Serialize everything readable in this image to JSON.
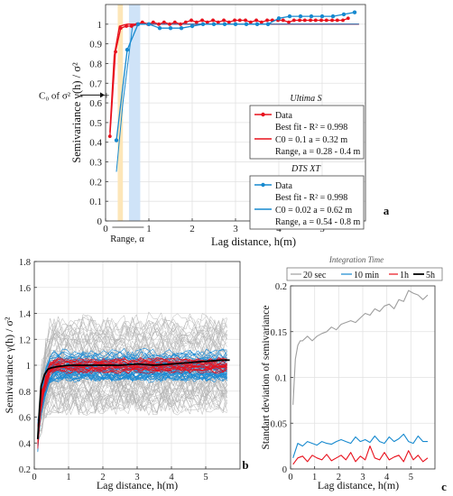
{
  "chart_data": [
    {
      "panel": "a",
      "type": "line",
      "xlabel": "Lag distance, h(m)",
      "ylabel": "Semivariance γ(h) / σ²",
      "xlim": [
        0,
        6
      ],
      "ylim": [
        0,
        1.1
      ],
      "xticks": [
        0,
        1,
        2,
        3,
        4,
        5
      ],
      "yticks": [
        0,
        0.1,
        0.2,
        0.3,
        0.4,
        0.5,
        0.6,
        0.7,
        0.8,
        0.9,
        1
      ],
      "grid": true,
      "range_bands": [
        {
          "from": 0.28,
          "to": 0.4,
          "color": "#fde6b8"
        },
        {
          "from": 0.54,
          "to": 0.8,
          "color": "#cfe3f8"
        }
      ],
      "range_label": "Range, α",
      "c0_label": "C₀ of σ²",
      "panel_label": "a",
      "legends": [
        {
          "title": "Ultima S",
          "data_label": "Data",
          "fit_label": "Best fit - R² = 0.998",
          "model_label": "C0 = 0.1 a = 0.32 m",
          "range_label": "Range, a = 0.28 - 0.4 m",
          "color": "#e8101c"
        },
        {
          "title": "DTS XT",
          "data_label": "Data",
          "fit_label": "Best fit - R² = 0.998",
          "model_label": "C0 = 0.02 a = 0.62 m",
          "range_label": "Range, a = 0.54 - 0.8 m",
          "color": "#1689cf"
        }
      ],
      "series": [
        {
          "name": "Ultima S",
          "color": "#e8101c",
          "x": [
            0.1,
            0.23,
            0.35,
            0.48,
            0.6,
            0.73,
            0.85,
            0.98,
            1.1,
            1.23,
            1.35,
            1.48,
            1.6,
            1.73,
            1.85,
            1.98,
            2.1,
            2.23,
            2.35,
            2.48,
            2.6,
            2.73,
            2.85,
            2.98,
            3.1,
            3.23,
            3.35,
            3.48,
            3.6,
            3.73,
            3.85,
            3.98,
            4.1,
            4.23,
            4.35,
            4.48,
            4.6,
            4.73,
            4.85,
            4.98,
            5.1,
            5.23,
            5.35,
            5.48,
            5.6
          ],
          "y": [
            0.43,
            0.86,
            0.98,
            0.99,
            0.99,
            1.0,
            1.01,
            1.0,
            1.01,
            1.0,
            1.01,
            1.0,
            1.01,
            1.0,
            1.01,
            1.02,
            1.01,
            1.02,
            1.01,
            1.02,
            1.01,
            1.02,
            1.01,
            1.02,
            1.02,
            1.02,
            1.01,
            1.02,
            1.01,
            1.02,
            1.02,
            1.02,
            1.02,
            1.01,
            1.02,
            1.02,
            1.02,
            1.02,
            1.02,
            1.02,
            1.02,
            1.02,
            1.02,
            1.02,
            1.03
          ]
        },
        {
          "name": "DTS XT",
          "color": "#1689cf",
          "x": [
            0.25,
            0.5,
            0.75,
            1.0,
            1.25,
            1.5,
            1.75,
            2.0,
            2.25,
            2.5,
            2.75,
            3.0,
            3.25,
            3.5,
            3.75,
            4.0,
            4.25,
            4.5,
            4.75,
            5.0,
            5.25,
            5.5,
            5.75
          ],
          "y": [
            0.41,
            0.87,
            1.0,
            1.0,
            0.98,
            0.98,
            0.98,
            0.99,
            1.0,
            1.0,
            1.0,
            1.0,
            1.0,
            1.0,
            1.0,
            1.03,
            1.04,
            1.04,
            1.04,
            1.04,
            1.04,
            1.05,
            1.06
          ]
        }
      ],
      "fit_sill": 1.0
    },
    {
      "panel": "b",
      "type": "line",
      "xlabel": "Lag distance, h(m)",
      "ylabel": "Semivariance γ(h) / σ²",
      "xlim": [
        0,
        6
      ],
      "ylim": [
        0.2,
        1.8
      ],
      "xticks": [
        0,
        1,
        2,
        3,
        4,
        5
      ],
      "yticks": [
        0.2,
        0.4,
        0.6,
        0.8,
        1,
        1.2,
        1.4,
        1.6,
        1.8
      ],
      "grid": true,
      "panel_label": "b",
      "series": [
        {
          "name": "envelope gray",
          "color": "#b5b5b5",
          "band": [
            0.7,
            1.35
          ]
        },
        {
          "name": "envelope blue",
          "color": "#1a8ad4",
          "band": [
            0.9,
            1.1
          ]
        },
        {
          "name": "envelope red",
          "color": "#e8101c",
          "band": [
            0.95,
            1.05
          ]
        },
        {
          "name": "mean",
          "color": "#000000",
          "x": [
            0.1,
            0.15,
            0.2,
            0.3,
            0.4,
            0.5,
            0.7,
            1.0,
            1.5,
            2.0,
            2.5,
            3.0,
            3.5,
            4.0,
            4.5,
            5.0,
            5.5,
            5.7
          ],
          "y": [
            0.43,
            0.65,
            0.84,
            0.93,
            0.97,
            0.98,
            0.99,
            1.0,
            1.0,
            1.0,
            1.0,
            1.01,
            1.0,
            1.01,
            1.02,
            1.03,
            1.04,
            1.04
          ]
        }
      ]
    },
    {
      "panel": "c",
      "type": "line",
      "legend_title": "Integration Time",
      "xlabel": "Lag distance, h(m)",
      "ylabel": "Standart deviation of semivariance",
      "xlim": [
        0,
        6
      ],
      "ylim": [
        0,
        0.2
      ],
      "xticks": [
        0,
        1,
        2,
        3,
        4,
        5
      ],
      "yticks": [
        0,
        0.05,
        0.1,
        0.15,
        0.2
      ],
      "grid": true,
      "panel_label": "c",
      "series": [
        {
          "name": "20 sec",
          "color": "#9e9e9e",
          "x": [
            0.1,
            0.2,
            0.3,
            0.4,
            0.5,
            0.7,
            0.9,
            1.1,
            1.3,
            1.5,
            1.7,
            1.9,
            2.1,
            2.3,
            2.5,
            2.7,
            2.9,
            3.1,
            3.3,
            3.5,
            3.7,
            3.9,
            4.1,
            4.3,
            4.5,
            4.7,
            4.9,
            5.1,
            5.3,
            5.5,
            5.7
          ],
          "y": [
            0.07,
            0.12,
            0.135,
            0.14,
            0.14,
            0.145,
            0.14,
            0.145,
            0.148,
            0.15,
            0.155,
            0.152,
            0.158,
            0.16,
            0.162,
            0.16,
            0.165,
            0.17,
            0.168,
            0.175,
            0.172,
            0.178,
            0.18,
            0.175,
            0.185,
            0.183,
            0.195,
            0.192,
            0.19,
            0.185,
            0.19
          ]
        },
        {
          "name": "10 min",
          "color": "#1689cf",
          "x": [
            0.1,
            0.3,
            0.5,
            0.7,
            0.9,
            1.1,
            1.3,
            1.5,
            1.7,
            1.9,
            2.1,
            2.3,
            2.5,
            2.7,
            2.9,
            3.1,
            3.3,
            3.5,
            3.7,
            3.9,
            4.1,
            4.3,
            4.5,
            4.7,
            4.9,
            5.1,
            5.3,
            5.5,
            5.7
          ],
          "y": [
            0.012,
            0.028,
            0.025,
            0.03,
            0.028,
            0.026,
            0.03,
            0.028,
            0.027,
            0.03,
            0.032,
            0.03,
            0.028,
            0.035,
            0.03,
            0.032,
            0.029,
            0.036,
            0.03,
            0.028,
            0.035,
            0.03,
            0.033,
            0.038,
            0.03,
            0.028,
            0.036,
            0.03,
            0.03
          ]
        },
        {
          "name": "1h",
          "color": "#e8101c",
          "x": [
            0.1,
            0.3,
            0.5,
            0.7,
            0.9,
            1.1,
            1.3,
            1.5,
            1.7,
            1.9,
            2.1,
            2.3,
            2.5,
            2.7,
            2.9,
            3.1,
            3.3,
            3.5,
            3.7,
            3.9,
            4.1,
            4.3,
            4.5,
            4.7,
            4.9,
            5.1,
            5.3,
            5.5,
            5.7
          ],
          "y": [
            0.005,
            0.012,
            0.014,
            0.008,
            0.015,
            0.012,
            0.01,
            0.016,
            0.009,
            0.012,
            0.015,
            0.01,
            0.018,
            0.008,
            0.014,
            0.01,
            0.025,
            0.012,
            0.01,
            0.018,
            0.01,
            0.013,
            0.015,
            0.008,
            0.02,
            0.01,
            0.015,
            0.008,
            0.012
          ]
        },
        {
          "name": "5h",
          "color": "#000000",
          "x": [],
          "y": []
        }
      ]
    }
  ]
}
